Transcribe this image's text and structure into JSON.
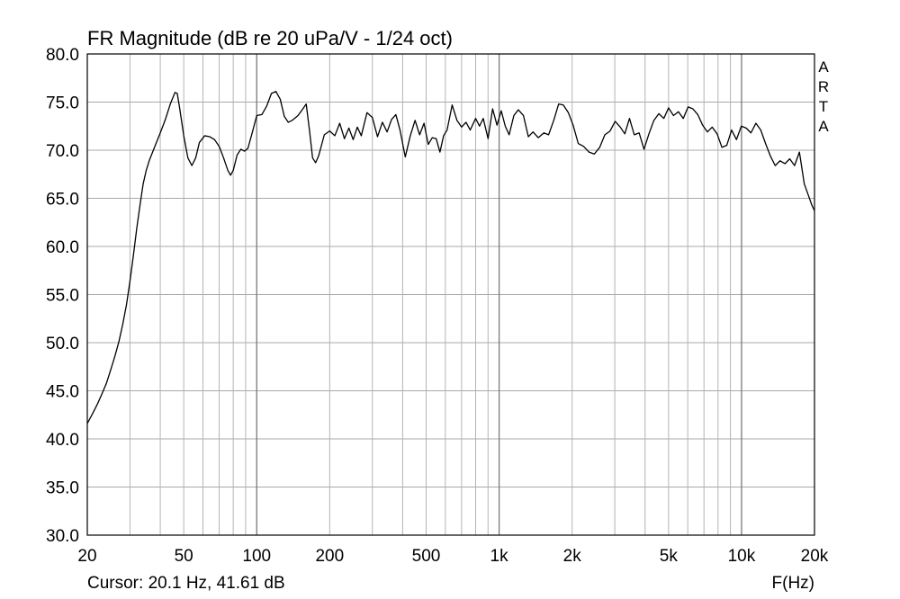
{
  "chart_data": {
    "type": "line",
    "title": "FR Magnitude (dB re 20 uPa/V - 1/24 oct)",
    "xlabel": "F(Hz)",
    "ylabel": "",
    "x_scale": "log",
    "xlim": [
      20,
      20000
    ],
    "ylim": [
      30,
      80
    ],
    "grid": true,
    "legend": "none",
    "x_ticks": [
      {
        "value": 20,
        "label": "20"
      },
      {
        "value": 50,
        "label": "50"
      },
      {
        "value": 100,
        "label": "100"
      },
      {
        "value": 200,
        "label": "200"
      },
      {
        "value": 500,
        "label": "500"
      },
      {
        "value": 1000,
        "label": "1k"
      },
      {
        "value": 2000,
        "label": "2k"
      },
      {
        "value": 5000,
        "label": "5k"
      },
      {
        "value": 10000,
        "label": "10k"
      },
      {
        "value": 20000,
        "label": "20k"
      }
    ],
    "y_ticks": [
      {
        "value": 30,
        "label": "30.0"
      },
      {
        "value": 35,
        "label": "35.0"
      },
      {
        "value": 40,
        "label": "40.0"
      },
      {
        "value": 45,
        "label": "45.0"
      },
      {
        "value": 50,
        "label": "50.0"
      },
      {
        "value": 55,
        "label": "55.0"
      },
      {
        "value": 60,
        "label": "60.0"
      },
      {
        "value": 65,
        "label": "65.0"
      },
      {
        "value": 70,
        "label": "70.0"
      },
      {
        "value": 75,
        "label": "75.0"
      },
      {
        "value": 80,
        "label": "80.0"
      }
    ],
    "series": [
      {
        "color": "#000000",
        "points": [
          [
            20,
            41.6
          ],
          [
            21,
            42.6
          ],
          [
            22,
            43.6
          ],
          [
            23,
            44.7
          ],
          [
            24,
            45.8
          ],
          [
            25,
            47.2
          ],
          [
            26,
            48.6
          ],
          [
            27,
            50.1
          ],
          [
            28,
            51.9
          ],
          [
            29,
            53.9
          ],
          [
            30,
            56.4
          ],
          [
            31,
            59.1
          ],
          [
            32,
            61.9
          ],
          [
            33,
            64.3
          ],
          [
            34,
            66.5
          ],
          [
            35,
            67.9
          ],
          [
            36,
            68.9
          ],
          [
            38,
            70.4
          ],
          [
            40,
            71.8
          ],
          [
            42,
            73.2
          ],
          [
            44,
            74.8
          ],
          [
            46,
            76.0
          ],
          [
            47,
            75.9
          ],
          [
            48,
            74.5
          ],
          [
            50,
            71.5
          ],
          [
            52,
            69.2
          ],
          [
            54,
            68.4
          ],
          [
            56,
            69.2
          ],
          [
            58,
            70.8
          ],
          [
            61,
            71.5
          ],
          [
            64,
            71.4
          ],
          [
            67,
            71.1
          ],
          [
            70,
            70.4
          ],
          [
            73,
            69.2
          ],
          [
            76,
            67.9
          ],
          [
            78,
            67.4
          ],
          [
            80,
            67.9
          ],
          [
            83,
            69.5
          ],
          [
            86,
            70.1
          ],
          [
            89,
            69.9
          ],
          [
            92,
            70.2
          ],
          [
            96,
            71.9
          ],
          [
            100,
            73.6
          ],
          [
            105,
            73.7
          ],
          [
            110,
            74.6
          ],
          [
            115,
            75.9
          ],
          [
            120,
            76.1
          ],
          [
            125,
            75.3
          ],
          [
            130,
            73.5
          ],
          [
            135,
            72.9
          ],
          [
            140,
            73.1
          ],
          [
            148,
            73.6
          ],
          [
            155,
            74.3
          ],
          [
            160,
            74.8
          ],
          [
            165,
            72.1
          ],
          [
            170,
            69.2
          ],
          [
            175,
            68.7
          ],
          [
            180,
            69.4
          ],
          [
            190,
            71.6
          ],
          [
            200,
            72.0
          ],
          [
            210,
            71.5
          ],
          [
            220,
            72.8
          ],
          [
            230,
            71.2
          ],
          [
            240,
            72.3
          ],
          [
            250,
            71.1
          ],
          [
            260,
            72.4
          ],
          [
            270,
            71.5
          ],
          [
            285,
            73.9
          ],
          [
            300,
            73.4
          ],
          [
            315,
            71.4
          ],
          [
            330,
            72.9
          ],
          [
            345,
            71.9
          ],
          [
            360,
            73.2
          ],
          [
            375,
            73.7
          ],
          [
            390,
            72.1
          ],
          [
            410,
            69.3
          ],
          [
            430,
            71.5
          ],
          [
            450,
            73.1
          ],
          [
            470,
            71.6
          ],
          [
            490,
            72.8
          ],
          [
            510,
            70.6
          ],
          [
            530,
            71.3
          ],
          [
            550,
            71.2
          ],
          [
            570,
            69.8
          ],
          [
            590,
            71.5
          ],
          [
            610,
            72.1
          ],
          [
            640,
            74.7
          ],
          [
            670,
            73.1
          ],
          [
            700,
            72.4
          ],
          [
            730,
            72.9
          ],
          [
            760,
            72.1
          ],
          [
            800,
            73.3
          ],
          [
            830,
            72.5
          ],
          [
            860,
            73.3
          ],
          [
            900,
            71.2
          ],
          [
            940,
            74.3
          ],
          [
            980,
            72.6
          ],
          [
            1020,
            74.1
          ],
          [
            1060,
            72.5
          ],
          [
            1100,
            71.6
          ],
          [
            1150,
            73.6
          ],
          [
            1200,
            74.2
          ],
          [
            1260,
            73.6
          ],
          [
            1320,
            71.4
          ],
          [
            1380,
            71.9
          ],
          [
            1450,
            71.3
          ],
          [
            1530,
            71.8
          ],
          [
            1600,
            71.6
          ],
          [
            1680,
            73.1
          ],
          [
            1760,
            74.8
          ],
          [
            1840,
            74.7
          ],
          [
            1930,
            73.9
          ],
          [
            2020,
            72.6
          ],
          [
            2120,
            70.7
          ],
          [
            2230,
            70.4
          ],
          [
            2350,
            69.8
          ],
          [
            2470,
            69.6
          ],
          [
            2600,
            70.3
          ],
          [
            2730,
            71.6
          ],
          [
            2870,
            72.0
          ],
          [
            3010,
            73.0
          ],
          [
            3160,
            72.4
          ],
          [
            3300,
            71.7
          ],
          [
            3450,
            73.3
          ],
          [
            3610,
            71.6
          ],
          [
            3780,
            71.8
          ],
          [
            3960,
            70.1
          ],
          [
            4150,
            71.7
          ],
          [
            4350,
            73.1
          ],
          [
            4560,
            73.8
          ],
          [
            4780,
            73.3
          ],
          [
            5000,
            74.4
          ],
          [
            5240,
            73.6
          ],
          [
            5490,
            74.0
          ],
          [
            5750,
            73.3
          ],
          [
            6020,
            74.5
          ],
          [
            6300,
            74.3
          ],
          [
            6600,
            73.7
          ],
          [
            6910,
            72.6
          ],
          [
            7230,
            71.9
          ],
          [
            7570,
            72.4
          ],
          [
            7930,
            71.7
          ],
          [
            8300,
            70.3
          ],
          [
            8690,
            70.5
          ],
          [
            9100,
            72.1
          ],
          [
            9530,
            71.1
          ],
          [
            9980,
            72.5
          ],
          [
            10450,
            72.3
          ],
          [
            10940,
            71.8
          ],
          [
            11460,
            72.8
          ],
          [
            12000,
            72.1
          ],
          [
            12560,
            70.7
          ],
          [
            13150,
            69.4
          ],
          [
            13770,
            68.4
          ],
          [
            14420,
            68.9
          ],
          [
            15100,
            68.6
          ],
          [
            15810,
            69.1
          ],
          [
            16550,
            68.4
          ],
          [
            17330,
            69.8
          ],
          [
            18150,
            66.5
          ],
          [
            19000,
            65.1
          ],
          [
            19500,
            64.3
          ],
          [
            20000,
            63.7
          ]
        ]
      }
    ],
    "annotations": {
      "brand": [
        "A",
        "R",
        "T",
        "A"
      ],
      "cursor": "Cursor: 20.1 Hz, 41.61 dB"
    }
  }
}
